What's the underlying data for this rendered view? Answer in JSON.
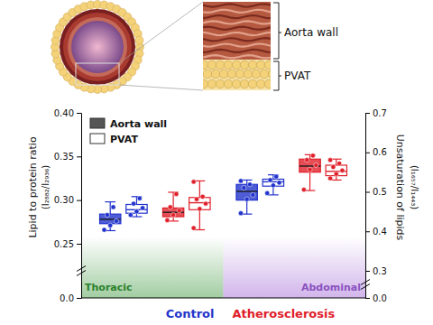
{
  "chart_data": {
    "type": "box",
    "y_label": "Lipid to protein ratio",
    "y_label_sub": "(I₂₈₈₂/I₂₉₃₆)",
    "y2_label": "Unsaturation of lipids",
    "y2_label_sub": "(I₁₆₅₇/I₁₄₄₃)",
    "ylim": [
      0,
      0.4
    ],
    "yticks": [
      {
        "value": 0,
        "label": "0.0"
      },
      0.25,
      {
        "value": 0.3,
        "label": "0.30"
      },
      0.35,
      {
        "value": 0.4,
        "label": "0.40"
      }
    ],
    "y2lim": [
      0,
      0.7
    ],
    "y2ticks": [
      {
        "value": 0,
        "label": "0.0"
      },
      0.3,
      0.4,
      0.5,
      0.6,
      0.7
    ],
    "categories": [
      "Thoracic",
      "Abdominal"
    ],
    "colors": [
      "#2f8f2f",
      "#9a5bd3"
    ],
    "groups": [
      {
        "name": "Control",
        "color": "#2233cc"
      },
      {
        "name": "Atherosclerosis",
        "color": "#e0202a"
      }
    ],
    "legend": "upper left",
    "series": [
      {
        "name": "Aorta wall",
        "color": "#555555",
        "boxes": [
          [
            {
              "min": 0.265,
              "q1": 0.273,
              "median": 0.278,
              "q3": 0.284,
              "max": 0.298,
              "points": [
                0.266,
                0.271,
                0.276,
                0.283,
                0.292
              ]
            },
            {
              "min": 0.276,
              "q1": 0.281,
              "median": 0.286,
              "q3": 0.291,
              "max": 0.309,
              "points": [
                0.277,
                0.283,
                0.288,
                0.292,
                0.307
              ]
            }
          ],
          [
            {
              "min": 0.284,
              "q1": 0.3,
              "median": 0.31,
              "q3": 0.318,
              "max": 0.323,
              "points": [
                0.285,
                0.301,
                0.306,
                0.314,
                0.318,
                0.322
              ]
            },
            {
              "min": 0.311,
              "q1": 0.332,
              "median": 0.339,
              "q3": 0.347,
              "max": 0.352,
              "points": [
                0.312,
                0.335,
                0.34,
                0.346,
                0.351
              ]
            }
          ]
        ]
      },
      {
        "name": "PVAT",
        "color": "#ffffff",
        "boxes": [
          [
            {
              "min": 0.281,
              "q1": 0.285,
              "median": 0.289,
              "q3": 0.295,
              "max": 0.304,
              "points": [
                0.283,
                0.287,
                0.291,
                0.296,
                0.302
              ]
            },
            {
              "min": 0.266,
              "q1": 0.289,
              "median": 0.297,
              "q3": 0.303,
              "max": 0.322,
              "points": [
                0.268,
                0.29,
                0.296,
                0.301,
                0.304,
                0.321
              ]
            }
          ],
          [
            {
              "min": 0.306,
              "q1": 0.316,
              "median": 0.321,
              "q3": 0.324,
              "max": 0.329,
              "points": [
                0.308,
                0.317,
                0.32,
                0.323,
                0.327
              ]
            },
            {
              "min": 0.323,
              "q1": 0.328,
              "median": 0.333,
              "q3": 0.34,
              "max": 0.347,
              "points": [
                0.325,
                0.33,
                0.334,
                0.338,
                0.342,
                0.346
              ]
            }
          ]
        ]
      }
    ]
  },
  "illustration": {
    "labels": [
      "Aorta wall",
      "PVAT"
    ]
  }
}
